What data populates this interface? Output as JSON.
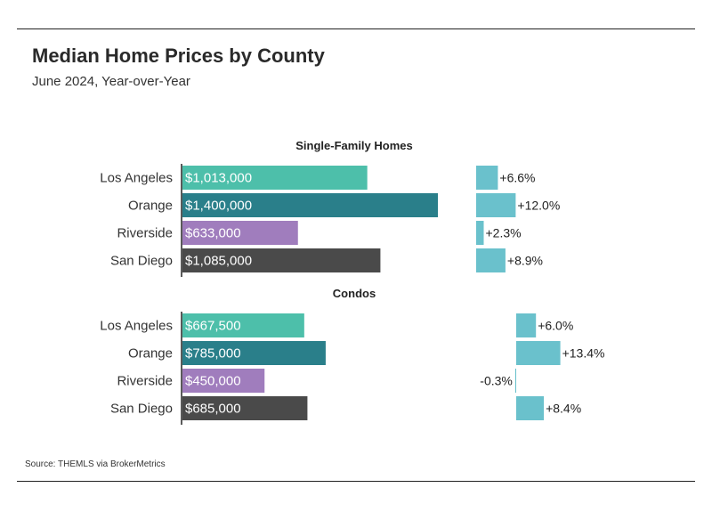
{
  "header": {
    "title": "Median Home Prices by County",
    "subtitle": "June 2024, Year-over-Year"
  },
  "footer": {
    "source": "Source:  THEMLS via BrokerMetrics"
  },
  "colors": {
    "Los Angeles": "#4dbfaa",
    "Orange": "#2a7f8a",
    "Riverside": "#a07dbd",
    "San Diego": "#4a4a4a",
    "change_bar": "#6ac1cc"
  },
  "chart_data": [
    {
      "type": "bar",
      "orientation": "horizontal",
      "title": "Single-Family Homes",
      "categories": [
        "Los Angeles",
        "Orange",
        "Riverside",
        "San Diego"
      ],
      "series": [
        {
          "name": "",
          "values": [
            1013000,
            1400000,
            633000,
            1085000
          ],
          "labels": [
            "$1,013,000",
            "$1,400,000",
            "$633,000",
            "$1,085,000"
          ]
        },
        {
          "name": "",
          "values": [
            6.6,
            12.0,
            2.3,
            8.9
          ],
          "labels": [
            "+6.6%",
            "+12.0%",
            "+2.3%",
            "+8.9%"
          ]
        }
      ]
    },
    {
      "type": "bar",
      "orientation": "horizontal",
      "title": "Condos",
      "categories": [
        "Los Angeles",
        "Orange",
        "Riverside",
        "San Diego"
      ],
      "series": [
        {
          "name": "",
          "values": [
            667500,
            785000,
            450000,
            685000
          ],
          "labels": [
            "$667,500",
            "$785,000",
            "$450,000",
            "$685,000"
          ]
        },
        {
          "name": "",
          "values": [
            6.0,
            13.4,
            -0.3,
            8.4
          ],
          "labels": [
            "+6.0%",
            "+13.4%",
            "-0.3%",
            "+8.4%"
          ]
        }
      ]
    }
  ]
}
